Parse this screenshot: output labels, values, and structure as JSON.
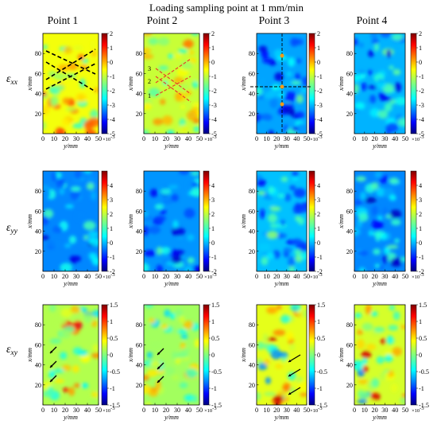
{
  "chart_data": {
    "type": "heatmap",
    "title": "Loading sampling point at 1 mm/min",
    "columns": [
      "Point 1",
      "Point 2",
      "Point 3",
      "Point 4"
    ],
    "rows": [
      {
        "id": "exx",
        "label_main": "ε",
        "label_sub": "xx",
        "colorbar_ticks": [
          "2",
          "1",
          "0",
          "-1",
          "-2",
          "-3",
          "-4",
          "-5"
        ],
        "colorbar_range": [
          -5,
          2
        ],
        "colorbar_multiplier": "×10",
        "colorbar_multiplier_exp": "-3",
        "ytick_labels": [
          "20",
          "40",
          "60",
          "80"
        ],
        "xtick_labels": [
          "0",
          "10",
          "20",
          "30",
          "40",
          "50"
        ],
        "xlabel": "y/mm",
        "ylabel": "x/mm",
        "mean_levels": [
          -0.7,
          -1.0,
          -3.0,
          -2.9
        ],
        "annotations": {
          "Point 2": [
            "3",
            "2",
            "1"
          ]
        }
      },
      {
        "id": "eyy",
        "label_main": "ε",
        "label_sub": "yy",
        "colorbar_ticks": [
          "4",
          "3",
          "2",
          "1",
          "0",
          "-1",
          "-2"
        ],
        "colorbar_range": [
          -2,
          5
        ],
        "colorbar_multiplier": "×10",
        "colorbar_multiplier_exp": "-3",
        "ytick_labels": [
          "20",
          "40",
          "60",
          "80"
        ],
        "xtick_labels": [
          "0",
          "10",
          "20",
          "30",
          "40",
          "50"
        ],
        "xlabel": "y/mm",
        "ylabel": "x/mm",
        "mean_levels": [
          -0.2,
          -0.1,
          0.2,
          -0.2
        ],
        "annotations": {}
      },
      {
        "id": "exy",
        "label_main": "ε",
        "label_sub": "xy",
        "colorbar_ticks": [
          "1.5",
          "1",
          "0.5",
          "0",
          "-0.5",
          "-1",
          "-1.5"
        ],
        "colorbar_range": [
          -1.5,
          1.5
        ],
        "colorbar_multiplier": "×10",
        "colorbar_multiplier_exp": "-3",
        "ytick_labels": [
          "20",
          "40",
          "60",
          "80"
        ],
        "xtick_labels": [
          "0",
          "10",
          "20",
          "30",
          "40",
          "50"
        ],
        "xlabel": "y/mm",
        "ylabel": "x/mm",
        "mean_levels": [
          0.15,
          0.1,
          0.3,
          0.25
        ],
        "annotations": {}
      }
    ]
  }
}
